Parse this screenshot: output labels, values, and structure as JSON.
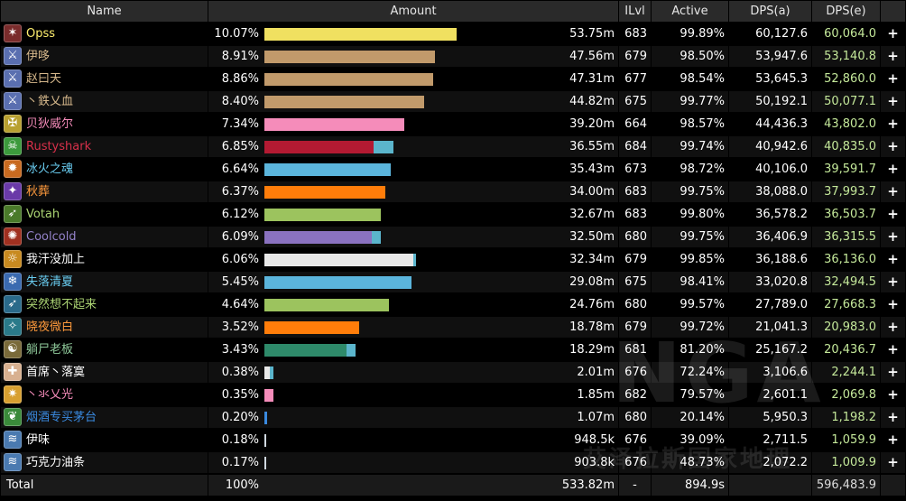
{
  "headers": {
    "name": "Name",
    "amount": "Amount",
    "ilvl": "ILvl",
    "active": "Active",
    "dps_a": "DPS(a)",
    "dps_e": "DPS(e)"
  },
  "plus_glyph": "+",
  "rows": [
    {
      "name": "Opss",
      "name_color": "#ffef6e",
      "icon": "rogue-icon",
      "icon_color": "#7a2c2c",
      "pct": "10.07%",
      "bar_fraction": 0.7875,
      "bar_color": "#f0e060",
      "bar2_fraction": 0,
      "amount": "53.75m",
      "ilvl": "683",
      "active": "99.89%",
      "dps_a": "60,127.6",
      "dps_e": "60,064.0"
    },
    {
      "name": "伊哆",
      "name_color": "#d7b98c",
      "icon": "arms-icon",
      "icon_color": "#5a6fb0",
      "pct": "8.91%",
      "bar_fraction": 0.6983,
      "bar_color": "#c19a6b",
      "bar2_fraction": 0,
      "amount": "47.56m",
      "ilvl": "679",
      "active": "98.50%",
      "dps_a": "53,947.6",
      "dps_e": "53,140.8"
    },
    {
      "name": "赵曰天",
      "name_color": "#d7b98c",
      "icon": "arms-icon",
      "icon_color": "#5a6fb0",
      "pct": "8.86%",
      "bar_fraction": 0.6942,
      "bar_color": "#c19a6b",
      "bar2_fraction": 0,
      "amount": "47.31m",
      "ilvl": "677",
      "active": "98.54%",
      "dps_a": "53,645.3",
      "dps_e": "52,860.0"
    },
    {
      "name": "丶鉄乂血",
      "name_color": "#d7b98c",
      "icon": "arms-icon",
      "icon_color": "#5a6fb0",
      "pct": "8.40%",
      "bar_fraction": 0.657,
      "bar_color": "#c19a6b",
      "bar2_fraction": 0,
      "amount": "44.82m",
      "ilvl": "675",
      "active": "99.77%",
      "dps_a": "50,192.1",
      "dps_e": "50,077.1"
    },
    {
      "name": "贝狄威尔",
      "name_color": "#f58cba",
      "icon": "paladin-icon",
      "icon_color": "#b8a030",
      "pct": "7.34%",
      "bar_fraction": 0.5744,
      "bar_color": "#f58cba",
      "bar2_fraction": 0,
      "amount": "39.20m",
      "ilvl": "664",
      "active": "98.57%",
      "dps_a": "44,436.3",
      "dps_e": "43,802.0"
    },
    {
      "name": "Rustyshark",
      "name_color": "#d8304a",
      "icon": "deathknight-icon",
      "icon_color": "#3c9a3c",
      "pct": "6.85%",
      "bar_fraction": 0.4463,
      "bar_color": "#b31a32",
      "bar2_fraction": 0.0826,
      "amount": "36.55m",
      "ilvl": "684",
      "active": "99.74%",
      "dps_a": "40,942.6",
      "dps_e": "40,835.0"
    },
    {
      "name": "冰火之魂",
      "name_color": "#69ccf0",
      "icon": "fire-icon",
      "icon_color": "#c86a20",
      "pct": "6.64%",
      "bar_fraction": 0.519,
      "bar_color": "#5bb5dc",
      "bar2_fraction": 0,
      "amount": "35.43m",
      "ilvl": "673",
      "active": "98.72%",
      "dps_a": "40,106.0",
      "dps_e": "39,591.7"
    },
    {
      "name": "秋葬",
      "name_color": "#ff9a3c",
      "icon": "moonkin-icon",
      "icon_color": "#6a3aa8",
      "pct": "6.37%",
      "bar_fraction": 0.4979,
      "bar_color": "#ff7d0a",
      "bar2_fraction": 0,
      "amount": "34.00m",
      "ilvl": "683",
      "active": "99.75%",
      "dps_a": "38,088.0",
      "dps_e": "37,993.7"
    },
    {
      "name": "Votah",
      "name_color": "#abd473",
      "icon": "hunter-icon",
      "icon_color": "#4a7a2a",
      "pct": "6.12%",
      "bar_fraction": 0.4793,
      "bar_color": "#9cc35e",
      "bar2_fraction": 0,
      "amount": "32.67m",
      "ilvl": "683",
      "active": "99.80%",
      "dps_a": "36,578.2",
      "dps_e": "36,503.7"
    },
    {
      "name": "Coolcold",
      "name_color": "#9482c9",
      "icon": "destruction-icon",
      "icon_color": "#a03020",
      "pct": "6.09%",
      "bar_fraction": 0.4421,
      "bar_color": "#8a72c0",
      "bar2_fraction": 0.0372,
      "amount": "32.50m",
      "ilvl": "680",
      "active": "99.75%",
      "dps_a": "36,406.9",
      "dps_e": "36,315.5"
    },
    {
      "name": "我汗没加上",
      "name_color": "#ffffff",
      "icon": "shadow-icon",
      "icon_color": "#c88a20",
      "pct": "6.06%",
      "bar_fraction": 0.6116,
      "bar_color": "#e8e8e8",
      "bar2_fraction": 0.0124,
      "amount": "32.34m",
      "ilvl": "679",
      "active": "99.85%",
      "dps_a": "36,188.6",
      "dps_e": "36,136.0"
    },
    {
      "name": "失落清夏",
      "name_color": "#69ccf0",
      "icon": "frost-icon",
      "icon_color": "#3a6ab0",
      "pct": "5.45%",
      "bar_fraction": 0.6033,
      "bar_color": "#5bb5dc",
      "bar2_fraction": 0,
      "amount": "29.08m",
      "ilvl": "675",
      "active": "98.41%",
      "dps_a": "33,020.8",
      "dps_e": "32,494.5"
    },
    {
      "name": "突然想不起来",
      "name_color": "#abd473",
      "icon": "hunter-icon",
      "icon_color": "#2a6a8a",
      "pct": "4.64%",
      "bar_fraction": 0.5124,
      "bar_color": "#9cc35e",
      "bar2_fraction": 0,
      "amount": "24.76m",
      "ilvl": "680",
      "active": "99.57%",
      "dps_a": "27,789.0",
      "dps_e": "27,668.3"
    },
    {
      "name": "晓夜微白",
      "name_color": "#ff9a3c",
      "icon": "feral-icon",
      "icon_color": "#2a7a8a",
      "pct": "3.52%",
      "bar_fraction": 0.3884,
      "bar_color": "#ff7d0a",
      "bar2_fraction": 0,
      "amount": "18.78m",
      "ilvl": "679",
      "active": "99.72%",
      "dps_a": "21,041.3",
      "dps_e": "20,983.0"
    },
    {
      "name": "躺尸老板",
      "name_color": "#8fc99a",
      "icon": "monk-icon",
      "icon_color": "#7a6a3a",
      "pct": "3.43%",
      "bar_fraction": 0.3388,
      "bar_color": "#2e8a6a",
      "bar2_fraction": 0.0372,
      "amount": "18.29m",
      "ilvl": "681",
      "active": "81.20%",
      "dps_a": "25,167.2",
      "dps_e": "20,436.7"
    },
    {
      "name": "首席丶落寞",
      "name_color": "#ffffff",
      "icon": "priest-icon",
      "icon_color": "#d8b090",
      "pct": "0.38%",
      "bar_fraction": 0.0207,
      "bar_color": "#e8e8e8",
      "bar2_fraction": 0.0165,
      "amount": "2.01m",
      "ilvl": "676",
      "active": "72.24%",
      "dps_a": "3,106.6",
      "dps_e": "2,244.1"
    },
    {
      "name": "丶氺乂光",
      "name_color": "#f58cba",
      "icon": "holy-icon",
      "icon_color": "#d8a030",
      "pct": "0.35%",
      "bar_fraction": 0.0372,
      "bar_color": "#f58cba",
      "bar2_fraction": 0,
      "amount": "1.85m",
      "ilvl": "682",
      "active": "79.57%",
      "dps_a": "2,601.1",
      "dps_e": "2,069.8"
    },
    {
      "name": "烟酒专买茅台",
      "name_color": "#3a8ae0",
      "icon": "restoration-icon",
      "icon_color": "#3a8a3a",
      "pct": "0.20%",
      "bar_fraction": 0.0124,
      "bar_color": "#3a8ae0",
      "bar2_fraction": 0,
      "amount": "1.07m",
      "ilvl": "680",
      "active": "20.14%",
      "dps_a": "5,950.3",
      "dps_e": "1,198.2"
    },
    {
      "name": "伊味",
      "name_color": "#ffffff",
      "icon": "shaman-icon",
      "icon_color": "#4a7ab0",
      "pct": "0.18%",
      "bar_fraction": 0.0083,
      "bar_color": "#d0d8e0",
      "bar2_fraction": 0,
      "amount": "948.5k",
      "ilvl": "676",
      "active": "39.09%",
      "dps_a": "2,711.5",
      "dps_e": "1,059.9"
    },
    {
      "name": "巧克力油条",
      "name_color": "#ffffff",
      "icon": "shaman-icon",
      "icon_color": "#4a7ab0",
      "pct": "0.17%",
      "bar_fraction": 0.0083,
      "bar_color": "#d0d8e0",
      "bar2_fraction": 0,
      "amount": "903.8k",
      "ilvl": "676",
      "active": "48.73%",
      "dps_a": "2,072.2",
      "dps_e": "1,009.9"
    }
  ],
  "total": {
    "name": "Total",
    "pct": "100%",
    "amount": "533.82m",
    "ilvl": "-",
    "active": "894.9s",
    "dps_e": "596,483.9"
  },
  "dps_e_color": "#c4e89a",
  "dps_e_total_color": "#dddddd",
  "watermark": "NGA",
  "watermark_sub": "艾泽拉斯国家地理"
}
